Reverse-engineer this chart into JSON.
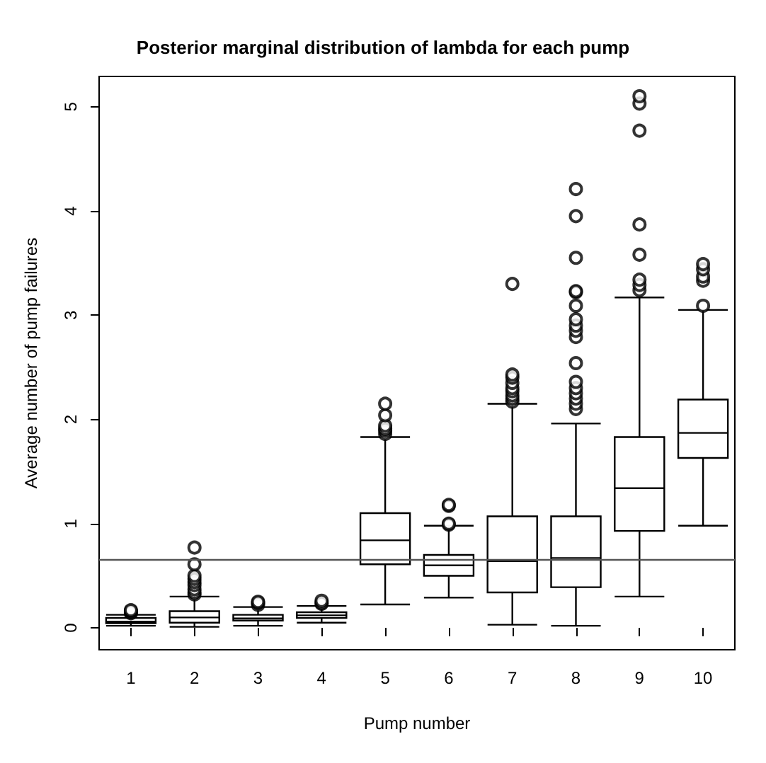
{
  "chart_data": {
    "type": "box",
    "title": "Posterior marginal distribution of lambda for each pump",
    "xlabel": "Pump number",
    "ylabel": "Average number of pump failures",
    "categories": [
      "1",
      "2",
      "3",
      "4",
      "5",
      "6",
      "7",
      "8",
      "9",
      "10"
    ],
    "boxes": [
      {
        "low": 0.02,
        "q1": 0.044,
        "median": 0.06,
        "q3": 0.096,
        "high": 0.125,
        "outliers": [
          0.14,
          0.15,
          0.16,
          0.17
        ]
      },
      {
        "low": 0.01,
        "q1": 0.05,
        "median": 0.1,
        "q3": 0.16,
        "high": 0.3,
        "outliers": [
          0.32,
          0.34,
          0.37,
          0.41,
          0.44,
          0.47,
          0.5,
          0.61,
          0.77
        ]
      },
      {
        "low": 0.02,
        "q1": 0.07,
        "median": 0.09,
        "q3": 0.125,
        "high": 0.2,
        "outliers": [
          0.22,
          0.24,
          0.25
        ]
      },
      {
        "low": 0.05,
        "q1": 0.095,
        "median": 0.12,
        "q3": 0.15,
        "high": 0.21,
        "outliers": [
          0.23,
          0.24,
          0.26
        ]
      },
      {
        "low": 0.225,
        "q1": 0.61,
        "median": 0.84,
        "q3": 1.1,
        "high": 1.83,
        "outliers": [
          1.86,
          1.89,
          1.91,
          1.94,
          2.04,
          2.15
        ]
      },
      {
        "low": 0.29,
        "q1": 0.5,
        "median": 0.6,
        "q3": 0.7,
        "high": 0.98,
        "outliers": [
          0.99,
          1.0,
          1.17,
          1.18
        ]
      },
      {
        "low": 0.03,
        "q1": 0.34,
        "median": 0.64,
        "q3": 1.07,
        "high": 2.15,
        "outliers": [
          2.17,
          2.2,
          2.23,
          2.27,
          2.3,
          2.35,
          2.4,
          2.43,
          3.3
        ]
      },
      {
        "low": 0.02,
        "q1": 0.39,
        "median": 0.67,
        "q3": 1.07,
        "high": 1.96,
        "outliers": [
          2.1,
          2.15,
          2.2,
          2.25,
          2.3,
          2.36,
          2.54,
          2.79,
          2.85,
          2.9,
          2.96,
          3.09,
          3.22,
          3.23,
          3.55,
          3.95,
          4.21
        ]
      },
      {
        "low": 0.3,
        "q1": 0.93,
        "median": 1.34,
        "q3": 1.83,
        "high": 3.17,
        "outliers": [
          3.24,
          3.29,
          3.34,
          3.58,
          3.87,
          4.77,
          5.03,
          5.1
        ]
      },
      {
        "low": 0.98,
        "q1": 1.63,
        "median": 1.87,
        "q3": 2.19,
        "high": 3.05,
        "outliers": [
          3.09,
          3.33,
          3.37,
          3.44,
          3.49
        ]
      }
    ],
    "color": "#000000",
    "ylim": [
      -0.21,
      5.29
    ],
    "yticks": [
      0,
      1,
      2,
      3,
      4,
      5
    ],
    "grid": false,
    "marker": "circle",
    "ref_lines": [
      {
        "axis": "y",
        "value": 0.66,
        "color": "#555555"
      }
    ]
  }
}
